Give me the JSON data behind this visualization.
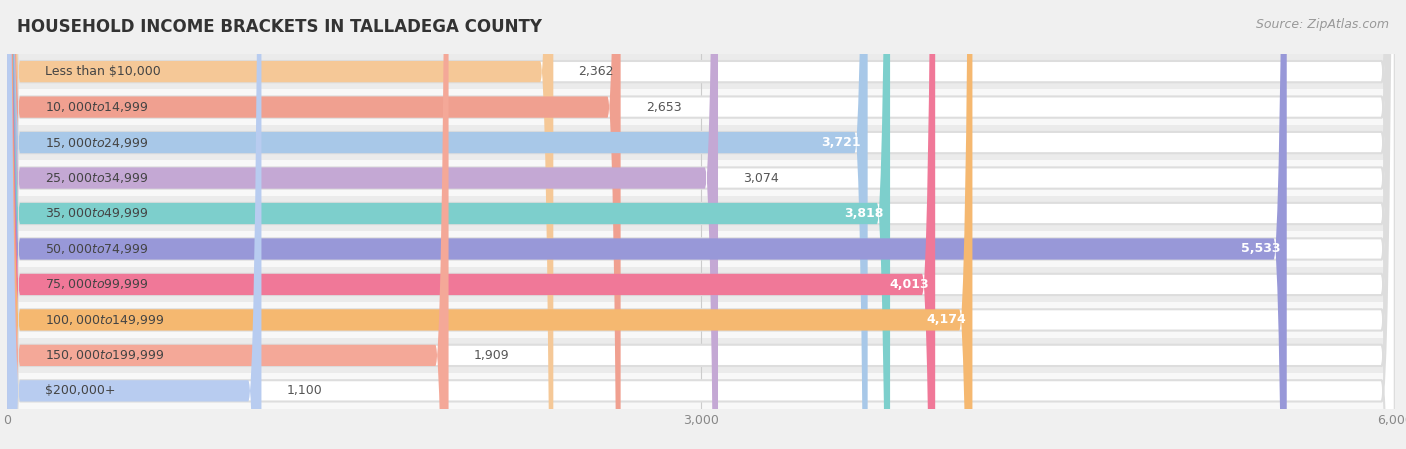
{
  "title": "HOUSEHOLD INCOME BRACKETS IN TALLADEGA COUNTY",
  "source": "Source: ZipAtlas.com",
  "categories": [
    "Less than $10,000",
    "$10,000 to $14,999",
    "$15,000 to $24,999",
    "$25,000 to $34,999",
    "$35,000 to $49,999",
    "$50,000 to $74,999",
    "$75,000 to $99,999",
    "$100,000 to $149,999",
    "$150,000 to $199,999",
    "$200,000+"
  ],
  "values": [
    2362,
    2653,
    3721,
    3074,
    3818,
    5533,
    4013,
    4174,
    1909,
    1100
  ],
  "bar_colors": [
    "#f5c897",
    "#f0a090",
    "#a8c8e8",
    "#c4a8d4",
    "#7dcfcc",
    "#9898d8",
    "#f07898",
    "#f5b870",
    "#f4a898",
    "#b8ccf0"
  ],
  "label_colors_inside": [
    false,
    false,
    true,
    false,
    true,
    true,
    true,
    true,
    false,
    false
  ],
  "xlim": [
    0,
    6000
  ],
  "xticks": [
    0,
    3000,
    6000
  ],
  "background_color": "#f0f0f0",
  "row_bg_even": "#ebebeb",
  "row_bg_odd": "#f8f8f8",
  "title_fontsize": 12,
  "source_fontsize": 9,
  "value_label_fontsize": 9,
  "cat_label_fontsize": 9
}
